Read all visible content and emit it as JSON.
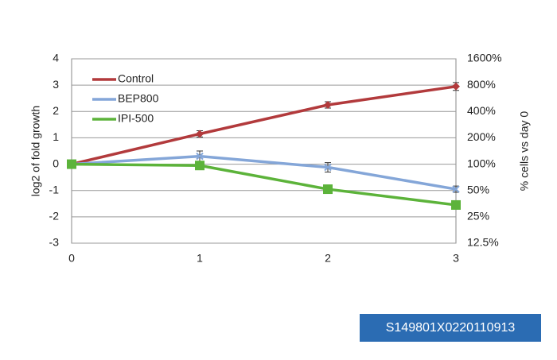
{
  "chart_data": {
    "type": "line",
    "x": [
      0,
      1,
      2,
      3
    ],
    "xlim": [
      0,
      3
    ],
    "xticks": [
      0,
      1,
      2,
      3
    ],
    "ylabel": "log2 of fold growth",
    "ylim": [
      -3,
      4
    ],
    "yticks": [
      -3,
      -2,
      -1,
      0,
      1,
      2,
      3,
      4
    ],
    "y2label": "% cells vs day 0",
    "y2log": true,
    "y2lim": [
      12.5,
      1600
    ],
    "y2ticks": [
      {
        "value": 12.5,
        "label": "12.5%"
      },
      {
        "value": 25,
        "label": "25%"
      },
      {
        "value": 50,
        "label": "50%"
      },
      {
        "value": 100,
        "label": "100%"
      },
      {
        "value": 200,
        "label": "200%"
      },
      {
        "value": 400,
        "label": "400%"
      },
      {
        "value": 800,
        "label": "800%"
      },
      {
        "value": 1600,
        "label": "1600%"
      }
    ],
    "grid": true,
    "legend": "upper-left",
    "series": [
      {
        "name": "Control",
        "color": "#b23a3c",
        "marker": "diamond",
        "values": [
          0,
          1.15,
          2.25,
          2.95
        ],
        "errors": [
          0.05,
          0.12,
          0.12,
          0.15
        ]
      },
      {
        "name": "BEP800",
        "color": "#84a6d8",
        "marker": "x",
        "values": [
          0,
          0.3,
          -0.12,
          -0.95
        ],
        "errors": [
          0.05,
          0.2,
          0.18,
          0.12
        ]
      },
      {
        "name": "IPI-500",
        "color": "#5cb33a",
        "marker": "square",
        "values": [
          0,
          -0.05,
          -0.95,
          -1.55
        ],
        "errors": [
          0.05,
          0.05,
          0.05,
          0.15
        ]
      }
    ]
  },
  "label": "S149801X0220110913"
}
